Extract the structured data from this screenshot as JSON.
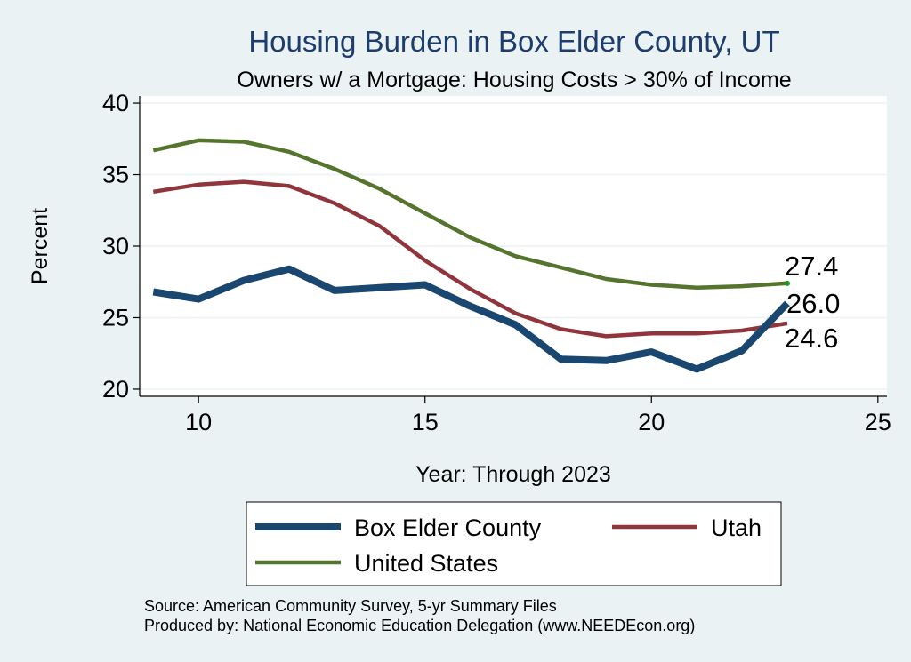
{
  "chart_data": {
    "type": "line",
    "title": "Housing Burden in Box Elder County, UT",
    "subtitle": "Owners w/ a Mortgage: Housing Costs > 30% of Income",
    "xlabel": "Year: Through 2023",
    "ylabel": "Percent",
    "xlim": [
      8.7,
      25.2
    ],
    "ylim": [
      19.5,
      40.5
    ],
    "x_ticks": [
      10,
      15,
      20,
      25
    ],
    "y_ticks": [
      20,
      25,
      30,
      35,
      40
    ],
    "x": [
      9,
      10,
      11,
      12,
      13,
      14,
      15,
      16,
      17,
      18,
      19,
      20,
      21,
      22,
      23
    ],
    "grid": true,
    "legend_position": "bottom",
    "series": [
      {
        "name": "Box Elder County",
        "color": "#1a476f",
        "values": [
          26.8,
          26.3,
          27.6,
          28.4,
          26.9,
          27.1,
          27.3,
          25.8,
          24.5,
          22.1,
          22.0,
          22.6,
          21.4,
          22.7,
          26.0
        ],
        "end_label": "26.0"
      },
      {
        "name": "Utah",
        "color": "#90353b",
        "values": [
          33.8,
          34.3,
          34.5,
          34.2,
          33.0,
          31.4,
          29.0,
          27.0,
          25.3,
          24.2,
          23.7,
          23.9,
          23.9,
          24.1,
          24.6
        ],
        "end_label": "24.6"
      },
      {
        "name": "United States",
        "color": "#55752f",
        "values": [
          36.7,
          37.4,
          37.3,
          36.6,
          35.4,
          34.0,
          32.3,
          30.6,
          29.3,
          28.5,
          27.7,
          27.3,
          27.1,
          27.2,
          27.4
        ],
        "end_label": "27.4"
      }
    ]
  },
  "footer": {
    "source": "Source: American Community Survey, 5-yr Summary Files",
    "produced": "Produced by: National Economic Education Delegation (www.NEEDEcon.org)"
  }
}
